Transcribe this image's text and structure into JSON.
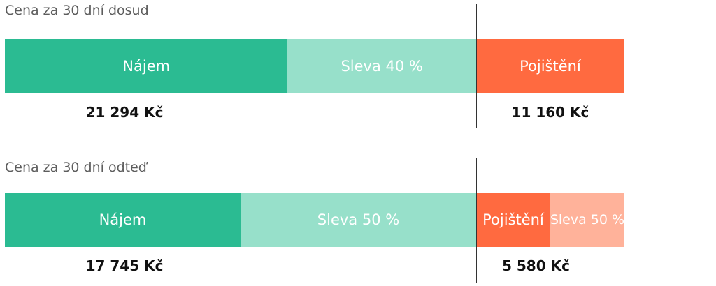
{
  "colors": {
    "rent": "#2bbb92",
    "rent_discount": "#97e0ca",
    "insurance": "#ff6a40",
    "insurance_discount": "#ffb29a"
  },
  "chart_data": [
    {
      "type": "bar",
      "title": "Cena za 30 dní dosud",
      "segments": [
        {
          "label": "Nájem",
          "value": 21294,
          "color_key": "rent"
        },
        {
          "label": "Sleva 40 %",
          "value": 14196,
          "color_key": "rent_discount"
        },
        {
          "label": "Pojištění",
          "value": 11160,
          "color_key": "insurance"
        }
      ],
      "amounts": [
        {
          "text": "21 294 Kč",
          "value": 21294
        },
        {
          "text": "11 160 Kč",
          "value": 11160
        }
      ]
    },
    {
      "type": "bar",
      "title": "Cena za 30 dní odteď",
      "segments": [
        {
          "label": "Nájem",
          "value": 17745,
          "color_key": "rent"
        },
        {
          "label": "Sleva 50 %",
          "value": 17745,
          "color_key": "rent_discount"
        },
        {
          "label": "Pojištění",
          "value": 5580,
          "color_key": "insurance"
        },
        {
          "label": "Sleva 50 %",
          "value": 5580,
          "color_key": "insurance_discount"
        }
      ],
      "amounts": [
        {
          "text": "17 745 Kč",
          "value": 17745
        },
        {
          "text": "5 580 Kč",
          "value": 5580
        }
      ]
    }
  ]
}
